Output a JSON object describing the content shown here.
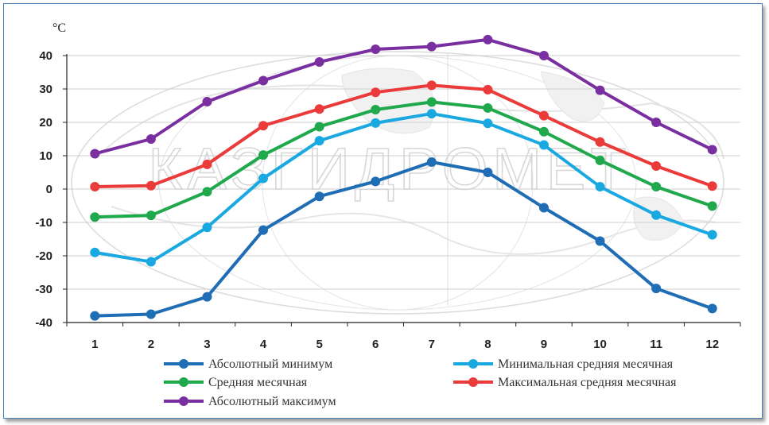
{
  "chart_data": {
    "type": "line",
    "unit_label": "°C",
    "categories": [
      "1",
      "2",
      "3",
      "4",
      "5",
      "6",
      "7",
      "8",
      "9",
      "10",
      "11",
      "12"
    ],
    "ylim": [
      -40,
      40
    ],
    "yticks": [
      "40",
      "30",
      "20",
      "10",
      "0",
      "-10",
      "-20",
      "-30",
      "-40"
    ],
    "ytick_values": [
      40,
      30,
      20,
      10,
      0,
      -10,
      -20,
      -30,
      -40
    ],
    "grid": true,
    "legend_position": "bottom",
    "watermark": "КАЗГИДРОМЕТ",
    "series": [
      {
        "name": "Абсолютный минимум",
        "color": "#1f6db4",
        "values": [
          -38,
          -37.5,
          -32.3,
          -12.3,
          -2.2,
          2.3,
          8.1,
          5.0,
          -5.6,
          -15.6,
          -29.8,
          -35.8
        ]
      },
      {
        "name": "Минимальная средняя месячная",
        "color": "#1aa8e0",
        "values": [
          -19,
          -21.8,
          -11.5,
          3.2,
          14.5,
          19.8,
          22.6,
          19.7,
          13.2,
          0.7,
          -7.8,
          -13.7
        ]
      },
      {
        "name": "Средняя месячная",
        "color": "#1fa84c",
        "values": [
          -8.4,
          -7.9,
          -0.8,
          10.2,
          18.7,
          23.8,
          26.1,
          24.3,
          17.2,
          8.6,
          0.7,
          -5.1
        ]
      },
      {
        "name": "Максимальная средняя месячная",
        "color": "#ea3a3a",
        "values": [
          0.7,
          1.0,
          7.4,
          19.0,
          24.0,
          29.0,
          31.1,
          29.8,
          22.0,
          14.1,
          6.9,
          0.9
        ]
      },
      {
        "name": "Абсолютный максимум",
        "color": "#7a2fa0",
        "values": [
          10.6,
          15.0,
          26.2,
          32.5,
          38.1,
          41.9,
          42.7,
          44.8,
          40.0,
          29.6,
          20.0,
          11.8
        ]
      }
    ]
  }
}
